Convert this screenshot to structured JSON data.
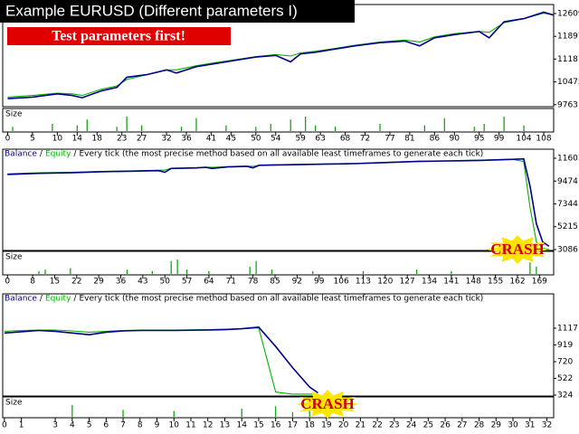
{
  "chart_data": [
    {
      "type": "line",
      "title": "Example EURUSD (Different parameters I)",
      "annotations": [
        "Test parameters first!"
      ],
      "x": [
        0,
        5,
        10,
        13,
        15,
        19,
        22,
        24,
        28,
        32,
        34,
        38,
        42,
        46,
        50,
        54,
        57,
        59,
        62,
        66,
        70,
        75,
        80,
        83,
        86,
        90,
        95,
        97,
        100,
        104,
        108,
        110
      ],
      "series": [
        {
          "color": "#00008b",
          "values": [
            9950,
            10000,
            10100,
            10050,
            9980,
            10200,
            10300,
            10620,
            10700,
            10850,
            10750,
            10950,
            11050,
            11150,
            11250,
            11300,
            11100,
            11350,
            11400,
            11500,
            11600,
            11700,
            11750,
            11600,
            11850,
            11950,
            12050,
            11850,
            12350,
            12450,
            12650,
            12560
          ]
        },
        {
          "color": "#00b000",
          "values": [
            10000,
            10050,
            10120,
            10100,
            10050,
            10250,
            10350,
            10550,
            10700,
            10850,
            10850,
            10980,
            11080,
            11170,
            11260,
            11330,
            11280,
            11380,
            11430,
            11520,
            11620,
            11720,
            11780,
            11720,
            11880,
            11980,
            12050,
            12020,
            12320,
            12450,
            12620,
            12560
          ]
        }
      ],
      "xlim": [
        -1,
        110
      ],
      "ylim": [
        9700,
        12890
      ],
      "xticks": [
        0,
        5,
        10,
        14,
        18,
        23,
        27,
        32,
        36,
        41,
        45,
        50,
        54,
        59,
        63,
        68,
        72,
        77,
        81,
        86,
        90,
        95,
        99,
        104,
        108
      ],
      "yticks": [
        12609,
        11897,
        11187,
        10475,
        9763
      ],
      "size_label": "Size",
      "size": {
        "color": "#00a000",
        "x": [
          1,
          9,
          14,
          16,
          22,
          24,
          27,
          35,
          38,
          44,
          50,
          53,
          57,
          60,
          62,
          66,
          75,
          84,
          88,
          94,
          96,
          100,
          104
        ],
        "values": [
          0.3,
          0.5,
          0.4,
          0.8,
          0.3,
          1.0,
          0.4,
          0.3,
          0.9,
          0.4,
          0.3,
          0.5,
          0.8,
          1.0,
          0.4,
          0.3,
          0.5,
          0.4,
          0.9,
          0.3,
          0.5,
          1.0,
          0.4
        ]
      }
    },
    {
      "type": "line",
      "legend_separator": "/",
      "subtitle": "Every tick (the most precise method based on all available least timeframes to generate each tick)",
      "annotations": [
        "CRASH"
      ],
      "x": [
        0,
        5,
        10,
        20,
        30,
        40,
        48,
        50,
        52,
        60,
        63,
        65,
        70,
        76,
        78,
        80,
        90,
        100,
        110,
        120,
        130,
        140,
        150,
        160,
        164,
        166,
        168,
        170,
        172
      ],
      "series": [
        {
          "name": "Balance",
          "color": "#00008b",
          "values": [
            10100,
            10150,
            10200,
            10250,
            10350,
            10400,
            10450,
            10300,
            10650,
            10700,
            10750,
            10650,
            10800,
            10850,
            10700,
            10950,
            11000,
            11050,
            11100,
            11200,
            11300,
            11350,
            11400,
            11500,
            11550,
            9000,
            5500,
            3800,
            3400
          ]
        },
        {
          "name": "Equity",
          "color": "#00b000",
          "values": [
            10150,
            10200,
            10250,
            10300,
            10380,
            10430,
            10480,
            10500,
            10680,
            10720,
            10780,
            10760,
            10820,
            10880,
            10850,
            10970,
            11020,
            11070,
            11120,
            11220,
            11320,
            11370,
            11420,
            11520,
            11300,
            7000,
            3800,
            3200,
            3100
          ]
        }
      ],
      "xlim": [
        -1.5,
        173.5
      ],
      "ylim": [
        3000,
        12450
      ],
      "xticks": [
        0,
        8,
        15,
        22,
        29,
        36,
        43,
        50,
        57,
        64,
        71,
        78,
        85,
        92,
        99,
        106,
        113,
        120,
        127,
        134,
        141,
        148,
        155,
        162,
        169
      ],
      "yticks": [
        11603,
        9474,
        7344,
        5215,
        3086
      ],
      "size_label": "Size",
      "size": {
        "color": "#00a000",
        "x": [
          10,
          12,
          20,
          38,
          46,
          52,
          54,
          57,
          64,
          77,
          79,
          84,
          97,
          113,
          130,
          141,
          166,
          168
        ],
        "values": [
          0.2,
          0.3,
          0.4,
          0.3,
          0.2,
          0.9,
          1.0,
          0.3,
          0.2,
          0.5,
          0.9,
          0.3,
          0.2,
          0.2,
          0.3,
          0.2,
          0.8,
          0.5
        ]
      }
    },
    {
      "type": "line",
      "legend_separator": "/",
      "subtitle": "Every tick (the most precise method based on all available least timeframes to generate each tick)",
      "annotations": [
        "CRASH"
      ],
      "x": [
        0,
        1,
        2,
        3,
        4,
        5,
        6,
        7,
        8,
        10,
        12,
        13,
        14,
        15,
        16,
        17,
        18,
        18.5
      ],
      "series": [
        {
          "name": "Balance",
          "color": "#00008b",
          "values": [
            1060,
            1075,
            1090,
            1080,
            1060,
            1040,
            1070,
            1085,
            1090,
            1090,
            1095,
            1100,
            1110,
            1130,
            900,
            650,
            420,
            350
          ]
        },
        {
          "name": "Equity",
          "color": "#00b000",
          "values": [
            1080,
            1090,
            1095,
            1095,
            1085,
            1070,
            1080,
            1090,
            1095,
            1095,
            1100,
            1105,
            1110,
            1120,
            360,
            335,
            335,
            335
          ]
        }
      ],
      "xlim": [
        -0.1,
        32.4
      ],
      "ylim": [
        313,
        1524
      ],
      "xticks": [
        0,
        1,
        3,
        4,
        5,
        6,
        7,
        8,
        9,
        10,
        11,
        12,
        13,
        14,
        15,
        16,
        17,
        18,
        19,
        20,
        21,
        22,
        23,
        24,
        25,
        26,
        27,
        28,
        29,
        30,
        31,
        32
      ],
      "yticks": [
        1117,
        919,
        720,
        522,
        324
      ],
      "size_label": "Size",
      "size": {
        "color": "#00a000",
        "x": [
          4,
          7,
          10,
          14,
          16,
          17,
          18
        ],
        "values": [
          1.0,
          0.6,
          0.5,
          0.7,
          0.9,
          0.4,
          0.5
        ]
      }
    }
  ]
}
